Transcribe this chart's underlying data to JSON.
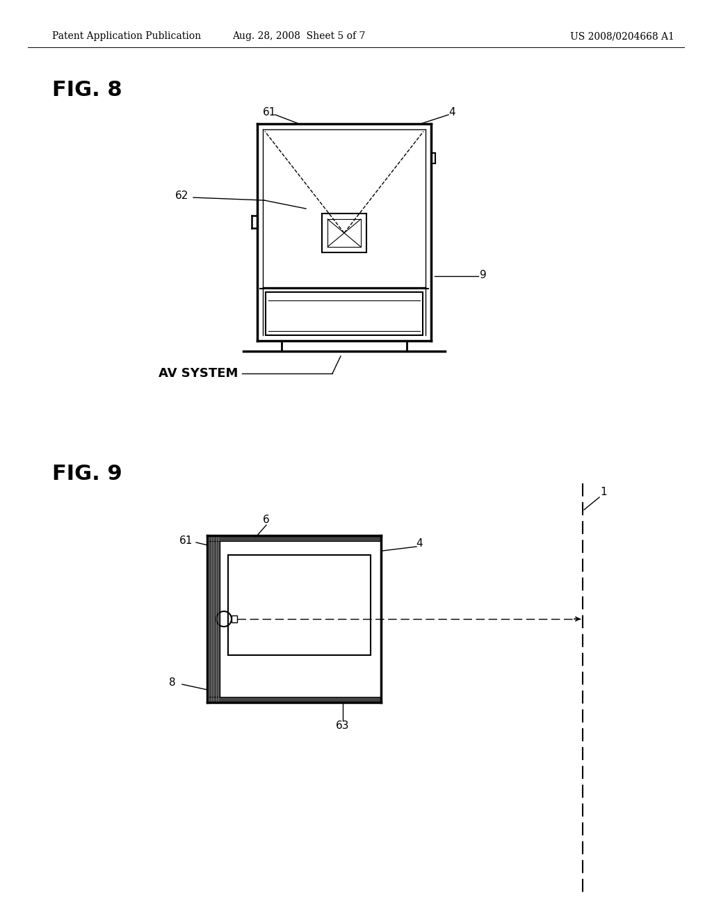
{
  "bg_color": "#ffffff",
  "header_left": "Patent Application Publication",
  "header_mid": "Aug. 28, 2008  Sheet 5 of 7",
  "header_right": "US 2008/0204668 A1",
  "fig8_label": "FIG. 8",
  "fig9_label": "FIG. 9"
}
